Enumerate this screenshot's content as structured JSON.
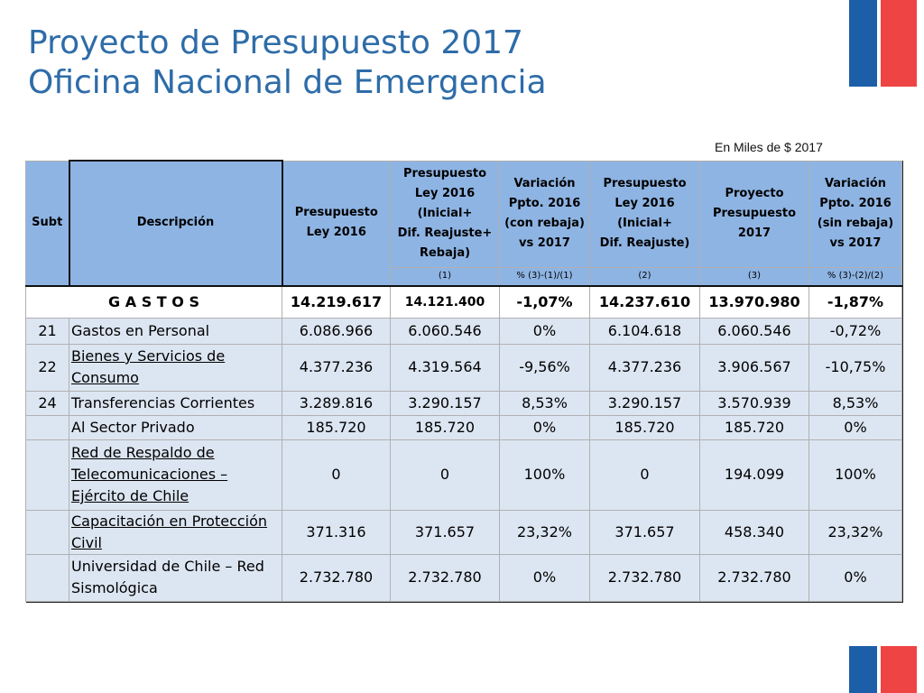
{
  "title_line1": "Proyecto de Presupuesto 2017",
  "title_line2": "Oficina Nacional de Emergencia",
  "units_note": "En Miles de $ 2017",
  "colors": {
    "title": "#2e6ca8",
    "header_bg": "#8eb4e3",
    "row_bg": "#dce6f2",
    "flag_blue": "#1d5ea8",
    "flag_red": "#ef4444"
  },
  "table": {
    "headers": {
      "subt": "Subt",
      "descripcion": "Descripción",
      "c1": "Presupuesto\nLey 2016",
      "c2": "Presupuesto\nLey 2016\n(Inicial+\nDif. Reajuste+\nRebaja)",
      "c3": "Variación\nPpto. 2016\n(con rebaja)\nvs 2017",
      "c4": "Presupuesto\nLey 2016\n(Inicial+\nDif. Reajuste)",
      "c5": "Proyecto\nPresupuesto\n2017",
      "c6": "Variación\nPpto. 2016\n(sin rebaja)\nvs 2017"
    },
    "subheaders": [
      "(1)",
      "% (3)-(1)/(1)",
      "(2)",
      "(3)",
      "% (3)-(2)/(2)"
    ],
    "total": {
      "label": "G A S T O S",
      "values": [
        "14.219.617",
        "14.121.400",
        "-1,07%",
        "14.237.610",
        "13.970.980",
        "-1,87%"
      ]
    },
    "rows": [
      {
        "subt": "21",
        "desc": "Gastos en Personal",
        "values": [
          "6.086.966",
          "6.060.546",
          "0%",
          "6.104.618",
          "6.060.546",
          "-0,72%"
        ]
      },
      {
        "subt": "22",
        "desc": "Bienes y Servicios de\nConsumo",
        "values": [
          "4.377.236",
          "4.319.564",
          "-9,56%",
          "4.377.236",
          "3.906.567",
          "-10,75%"
        ]
      },
      {
        "subt": "24",
        "desc": "Transferencias Corrientes",
        "values": [
          "3.289.816",
          "3.290.157",
          "8,53%",
          "3.290.157",
          "3.570.939",
          "8,53%"
        ]
      },
      {
        "subt": "",
        "desc": "Al Sector Privado",
        "values": [
          "185.720",
          "185.720",
          "0%",
          "185.720",
          "185.720",
          "0%"
        ]
      },
      {
        "subt": "",
        "desc": "Red de Respaldo de\nTelecomunicaciones –\nEjército de Chile",
        "values": [
          "0",
          "0",
          "100%",
          "0",
          "194.099",
          "100%"
        ]
      },
      {
        "subt": "",
        "desc": "Capacitación en Protección\nCivil",
        "values": [
          "371.316",
          "371.657",
          "23,32%",
          "371.657",
          "458.340",
          "23,32%"
        ]
      },
      {
        "subt": "",
        "desc": "Universidad de Chile – Red\nSismológica",
        "values": [
          "2.732.780",
          "2.732.780",
          "0%",
          "2.732.780",
          "2.732.780",
          "0%"
        ]
      }
    ]
  }
}
